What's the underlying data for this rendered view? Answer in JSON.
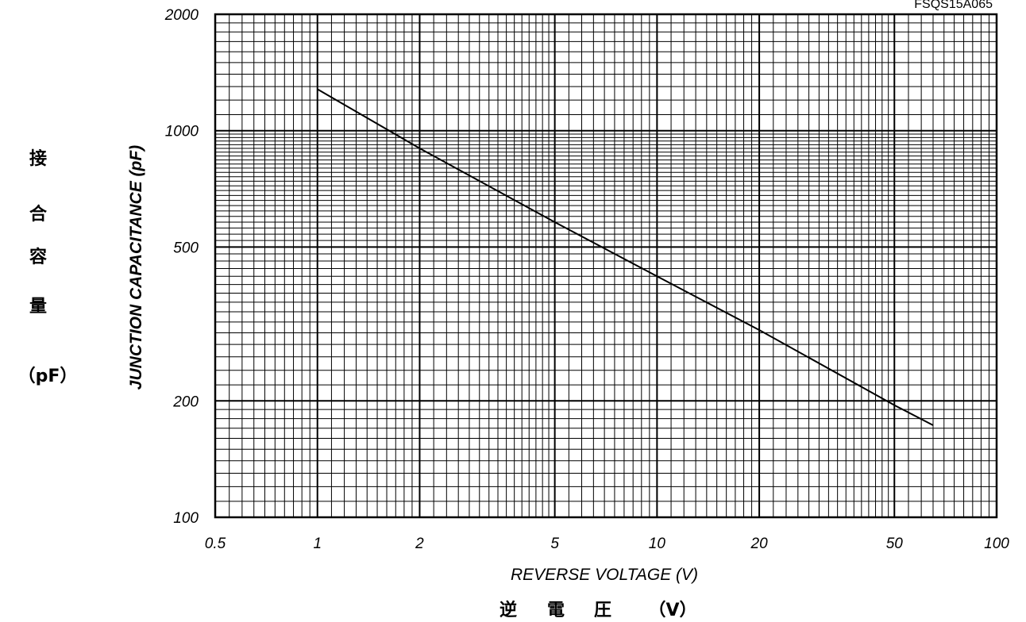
{
  "chart_data": {
    "type": "line",
    "part_number": "FSQS15A065",
    "xlabel": "REVERSE VOLTAGE (V)",
    "xlabel_jp": [
      "逆",
      "電",
      "圧",
      "（V）"
    ],
    "ylabel": "JUNCTION CAPACITANCE (pF)",
    "ylabel_jp": [
      "接",
      "合",
      "容",
      "量",
      "（pF）"
    ],
    "x_scale": "log",
    "y_scale": "log",
    "xlim": [
      0.5,
      100
    ],
    "ylim": [
      100,
      2000
    ],
    "x_ticks": [
      {
        "value": 0.5,
        "label": "0.5"
      },
      {
        "value": 1,
        "label": "1"
      },
      {
        "value": 2,
        "label": "2"
      },
      {
        "value": 5,
        "label": "5"
      },
      {
        "value": 10,
        "label": "10"
      },
      {
        "value": 20,
        "label": "20"
      },
      {
        "value": 50,
        "label": "50"
      },
      {
        "value": 100,
        "label": "100"
      }
    ],
    "y_ticks": [
      {
        "value": 100,
        "label": "100"
      },
      {
        "value": 200,
        "label": "200"
      },
      {
        "value": 500,
        "label": "500"
      },
      {
        "value": 1000,
        "label": "1000"
      },
      {
        "value": 2000,
        "label": "2000"
      }
    ],
    "grid": true,
    "series": [
      {
        "x": [
          1,
          2,
          5,
          10,
          20,
          50,
          65
        ],
        "y": [
          1280,
          900,
          580,
          420,
          305,
          195,
          173
        ],
        "color": "#000000"
      }
    ]
  }
}
